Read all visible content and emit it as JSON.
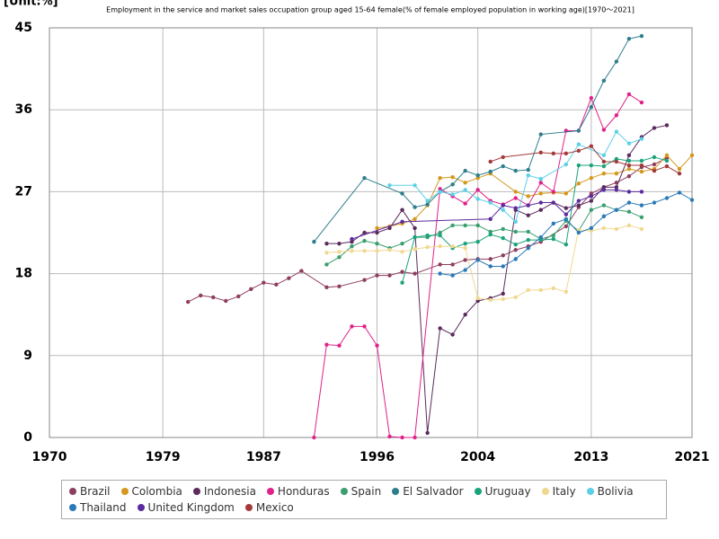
{
  "chart_data": {
    "type": "line",
    "title": "Employment in the service and market sales occupation group aged 15-64 female(% of female employed population in working age)[1970～2021]",
    "y_label": "[Unit:%]",
    "xlim": [
      1970,
      2021
    ],
    "xticks": [
      1970,
      1979,
      1987,
      1996,
      2004,
      2013,
      2021
    ],
    "ylim": [
      0,
      45
    ],
    "yticks": [
      0,
      9,
      18,
      27,
      36,
      45
    ],
    "grid": true,
    "legend": "bottom",
    "series": [
      {
        "name": "Brazil",
        "color": "#8e3e5f",
        "x": [
          1981,
          1982,
          1983,
          1984,
          1985,
          1986,
          1987,
          1988,
          1989,
          1990,
          1992,
          1993,
          1995,
          1996,
          1997,
          1998,
          1999,
          2001,
          2002,
          2003,
          2004,
          2005,
          2006,
          2007,
          2008,
          2009,
          2011,
          2012,
          2013,
          2014,
          2015,
          2016,
          2017,
          2018,
          2019
        ],
        "values": [
          14.9,
          15.6,
          15.4,
          15.0,
          15.5,
          16.3,
          17.0,
          16.8,
          17.5,
          18.3,
          16.5,
          16.6,
          17.3,
          17.8,
          17.8,
          18.2,
          18.0,
          19.0,
          19.0,
          19.5,
          19.6,
          19.6,
          20.0,
          20.6,
          21.0,
          21.5,
          23.2,
          25.3,
          26.8,
          27.5,
          28.0,
          28.7,
          29.7,
          30.0,
          30.7
        ]
      },
      {
        "name": "Colombia",
        "color": "#d4981c",
        "x": [
          1996,
          1997,
          1998,
          1999,
          2000,
          2001,
          2002,
          2003,
          2004,
          2005,
          2007,
          2008,
          2009,
          2010,
          2011,
          2012,
          2013,
          2014,
          2015,
          2016,
          2017,
          2018,
          2019,
          2020,
          2021
        ],
        "values": [
          23.0,
          23.2,
          23.5,
          24.0,
          25.5,
          28.5,
          28.6,
          28.0,
          28.5,
          29.0,
          27.0,
          26.5,
          26.8,
          26.9,
          26.8,
          27.9,
          28.5,
          29.0,
          29.0,
          29.5,
          29.2,
          29.5,
          31.0,
          29.5,
          31.0
        ]
      },
      {
        "name": "Indonesia",
        "color": "#5b2a5e",
        "x": [
          1992,
          1993,
          1994,
          1995,
          1996,
          1997,
          1998,
          1999,
          2000,
          2001,
          2002,
          2003,
          2004,
          2005,
          2006,
          2007,
          2008,
          2009,
          2010,
          2011,
          2012,
          2013,
          2014,
          2015,
          2016,
          2017,
          2018,
          2019
        ],
        "values": [
          21.3,
          21.3,
          21.5,
          22.5,
          22.5,
          23.0,
          25.0,
          23.0,
          0.5,
          12.0,
          11.3,
          13.5,
          15.0,
          15.3,
          15.8,
          25.0,
          24.4,
          25.0,
          25.8,
          25.2,
          25.5,
          26.0,
          27.5,
          27.5,
          31.0,
          33.0,
          34.0,
          34.3
        ]
      },
      {
        "name": "Honduras",
        "color": "#e0218a",
        "x": [
          1991,
          1992,
          1993,
          1994,
          1995,
          1996,
          1997,
          1998,
          1999,
          2001,
          2002,
          2003,
          2004,
          2005,
          2006,
          2007,
          2008,
          2009,
          2010,
          2011,
          2012,
          2013,
          2014,
          2015,
          2016,
          2017
        ],
        "values": [
          0,
          10.2,
          10.1,
          12.2,
          12.2,
          10.1,
          0.1,
          0,
          0,
          27.3,
          26.5,
          25.7,
          27.2,
          26.0,
          25.6,
          26.3,
          25.5,
          28.0,
          27.0,
          33.7,
          33.7,
          37.3,
          33.8,
          35.4,
          37.7,
          36.8
        ]
      },
      {
        "name": "Spain",
        "color": "#3a9e6e",
        "x": [
          1992,
          1993,
          1994,
          1995,
          1996,
          1997,
          1998,
          1999,
          2000,
          2001,
          2002,
          2003,
          2004,
          2005,
          2006,
          2007,
          2008,
          2009,
          2010,
          2011,
          2012,
          2013,
          2014,
          2015,
          2016,
          2017
        ],
        "values": [
          19.0,
          19.8,
          21.0,
          21.6,
          21.3,
          20.8,
          21.3,
          22.0,
          22.0,
          22.5,
          23.3,
          23.3,
          23.3,
          22.6,
          22.9,
          22.6,
          22.6,
          21.8,
          22.2,
          23.8,
          22.7,
          25.0,
          25.5,
          25.0,
          24.8,
          24.2
        ]
      },
      {
        "name": "El Salvador",
        "color": "#2e7d8c",
        "x": [
          1991,
          1995,
          1998,
          1999,
          2000,
          2001,
          2002,
          2003,
          2004,
          2005,
          2006,
          2007,
          2008,
          2009,
          2012,
          2013,
          2014,
          2015,
          2016,
          2017
        ],
        "values": [
          21.5,
          28.5,
          26.8,
          25.3,
          25.6,
          27.0,
          27.8,
          29.3,
          28.8,
          29.2,
          29.8,
          29.3,
          29.4,
          33.3,
          33.7,
          36.3,
          39.2,
          41.3,
          43.8,
          44.1
        ]
      },
      {
        "name": "Uruguay",
        "color": "#1aa37a",
        "x": [
          1998,
          1999,
          2000,
          2001,
          2002,
          2003,
          2004,
          2005,
          2006,
          2007,
          2008,
          2009,
          2010,
          2011,
          2012,
          2013,
          2014,
          2015,
          2016,
          2017,
          2018,
          2019
        ],
        "values": [
          17.0,
          22.0,
          22.2,
          22.2,
          20.8,
          21.3,
          21.5,
          22.3,
          21.9,
          21.2,
          21.7,
          21.7,
          21.8,
          21.2,
          29.9,
          29.9,
          29.8,
          30.6,
          30.4,
          30.4,
          30.8,
          30.4
        ]
      },
      {
        "name": "Italy",
        "color": "#f0d890",
        "x": [
          1992,
          1993,
          1994,
          1995,
          1996,
          1997,
          1998,
          1999,
          2000,
          2001,
          2002,
          2003,
          2004,
          2005,
          2006,
          2007,
          2008,
          2009,
          2010,
          2011,
          2012,
          2013,
          2014,
          2015,
          2016,
          2017
        ],
        "values": [
          20.3,
          20.4,
          20.5,
          20.5,
          20.5,
          20.6,
          20.4,
          20.7,
          20.9,
          21.0,
          21.0,
          20.8,
          15.3,
          15.1,
          15.2,
          15.4,
          16.2,
          16.2,
          16.4,
          16.0,
          22.8,
          22.7,
          23.0,
          22.9,
          23.3,
          22.9
        ]
      },
      {
        "name": "Bolivia",
        "color": "#5bd0e8",
        "x": [
          1997,
          1999,
          2000,
          2001,
          2002,
          2003,
          2004,
          2005,
          2006,
          2007,
          2008,
          2009,
          2011,
          2012,
          2014,
          2015,
          2016,
          2017
        ],
        "values": [
          27.7,
          27.7,
          26.0,
          27.0,
          26.7,
          27.2,
          26.2,
          25.8,
          25.0,
          23.7,
          28.8,
          28.4,
          30.0,
          32.2,
          31.0,
          33.6,
          32.3,
          32.8
        ]
      },
      {
        "name": "Thailand",
        "color": "#2a7ab8",
        "x": [
          2001,
          2002,
          2003,
          2004,
          2005,
          2006,
          2007,
          2008,
          2009,
          2010,
          2011,
          2012,
          2013,
          2014,
          2015,
          2016,
          2017,
          2018,
          2019,
          2020,
          2021
        ],
        "values": [
          18.0,
          17.8,
          18.4,
          19.5,
          18.8,
          18.8,
          19.6,
          20.8,
          22.0,
          23.5,
          24.0,
          22.5,
          23.0,
          24.3,
          25.0,
          25.8,
          25.5,
          25.8,
          26.3,
          26.9,
          26.1
        ]
      },
      {
        "name": "United Kingdom",
        "color": "#5b2a9e",
        "x": [
          1994,
          1998,
          2005,
          2006,
          2007,
          2008,
          2009,
          2010,
          2011,
          2012,
          2013,
          2014,
          2015,
          2016,
          2017
        ],
        "values": [
          21.8,
          23.7,
          24.0,
          25.5,
          25.2,
          25.5,
          25.8,
          25.8,
          24.5,
          26.0,
          26.5,
          27.2,
          27.2,
          27.0,
          27.0
        ]
      },
      {
        "name": "Mexico",
        "color": "#a33a3a",
        "x": [
          2005,
          2006,
          2009,
          2010,
          2011,
          2012,
          2013,
          2014,
          2015,
          2016,
          2017,
          2018,
          2019,
          2020
        ],
        "values": [
          30.3,
          30.8,
          31.3,
          31.2,
          31.2,
          31.5,
          32.0,
          30.3,
          30.3,
          29.9,
          29.9,
          29.3,
          29.8,
          29.0
        ]
      }
    ]
  }
}
